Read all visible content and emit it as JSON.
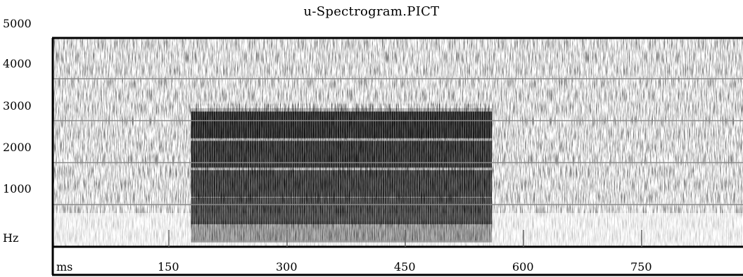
{
  "chart_data": {
    "type": "heatmap",
    "title": "u-Spectrogram.PICT",
    "y_unit_label": "Hz",
    "x_unit_label": "ms",
    "y_tick_labels": [
      "5000",
      "4000",
      "3000",
      "2000",
      "1000"
    ],
    "y_ticks": [
      5000,
      4000,
      3000,
      2000,
      1000
    ],
    "x_tick_labels": [
      "150",
      "300",
      "450",
      "600",
      "750"
    ],
    "x_ticks": [
      150,
      300,
      450,
      600,
      750
    ],
    "xlim": [
      0,
      870
    ],
    "ylim": [
      0,
      5000
    ],
    "grid": "horizontal",
    "voiced_segment_ms": [
      178,
      560
    ],
    "formant_bands_hz": [
      350,
      850,
      1500,
      2200,
      2900
    ],
    "colors": {
      "ink": "#000000",
      "grid": "#8a8a8a",
      "background": "#ffffff"
    }
  }
}
